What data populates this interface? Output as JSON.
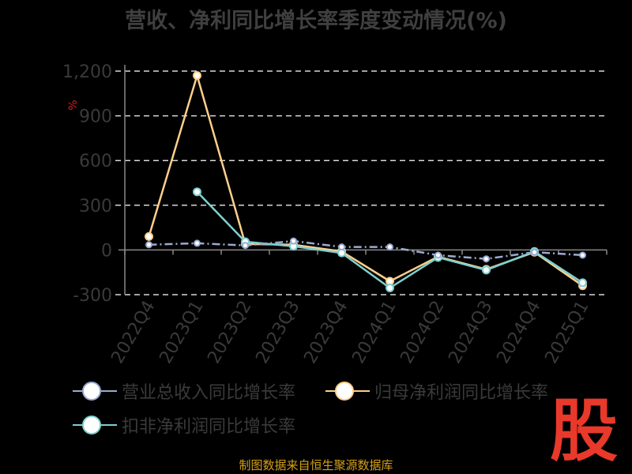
{
  "chart_data": {
    "type": "line",
    "title": "营收、净利同比增长率季度变动情况(%)",
    "ylabel": "%",
    "categories": [
      "2022Q4",
      "2023Q1",
      "2023Q2",
      "2023Q3",
      "2023Q4",
      "2024Q1",
      "2024Q2",
      "2024Q3",
      "2024Q4",
      "2025Q1"
    ],
    "yticks": [
      "1,200",
      "900",
      "600",
      "300",
      "0",
      "-300"
    ],
    "ylim": [
      -300,
      1200
    ],
    "grid": true,
    "legend_position": "bottom",
    "series": [
      {
        "name": "营业总收入同比增长率",
        "color": "#9aaad0",
        "values": [
          35,
          45,
          30,
          60,
          20,
          20,
          -35,
          -60,
          -15,
          -35
        ]
      },
      {
        "name": "归母净利润同比增长率",
        "color": "#ffd08a",
        "values": [
          90,
          1170,
          40,
          35,
          -10,
          -210,
          -45,
          -130,
          -15,
          -240
        ]
      },
      {
        "name": "扣非净利润同比增长率",
        "color": "#7fd0d0",
        "values": [
          null,
          390,
          55,
          25,
          -20,
          -255,
          -50,
          -135,
          -10,
          -220
        ]
      }
    ]
  },
  "source": "制图数据来自恒生聚源数据库",
  "logo_text": "股"
}
